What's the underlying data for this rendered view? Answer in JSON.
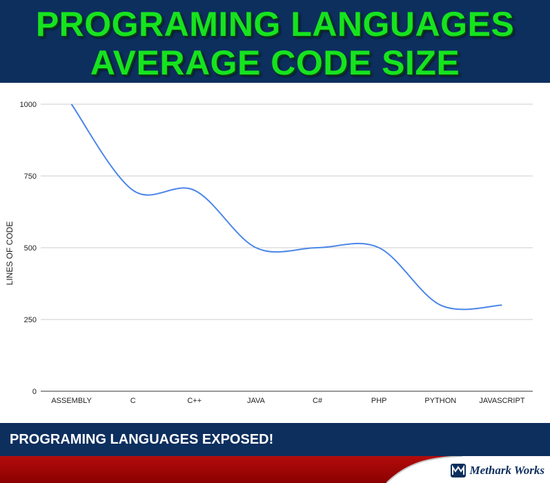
{
  "header": {
    "title_line1": "PROGRAMING LANGUAGES",
    "title_line2": "AVERAGE CODE SIZE"
  },
  "footer": {
    "caption": "PROGRAMING LANGUAGES EXPOSED!",
    "brand_name": "Methark Works",
    "brand_icon": "mw-logo-icon"
  },
  "colors": {
    "header_bg": "#0d2f5e",
    "title_green": "#16e31f",
    "line": "#4a86e8",
    "footer_red": "#a00000",
    "grid": "#cccccc"
  },
  "chart_data": {
    "type": "line",
    "categories": [
      "ASSEMBLY",
      "C",
      "C++",
      "JAVA",
      "C#",
      "PHP",
      "PYTHON",
      "JAVASCRIPT"
    ],
    "series": [
      {
        "values": [
          1000,
          700,
          700,
          500,
          500,
          500,
          300,
          300
        ]
      }
    ],
    "xlabel": "",
    "ylabel": "LINES OF CODE",
    "ylim": [
      0,
      1000
    ],
    "yticks": [
      0,
      250,
      500,
      750,
      1000
    ],
    "grid": true,
    "smooth": true
  }
}
